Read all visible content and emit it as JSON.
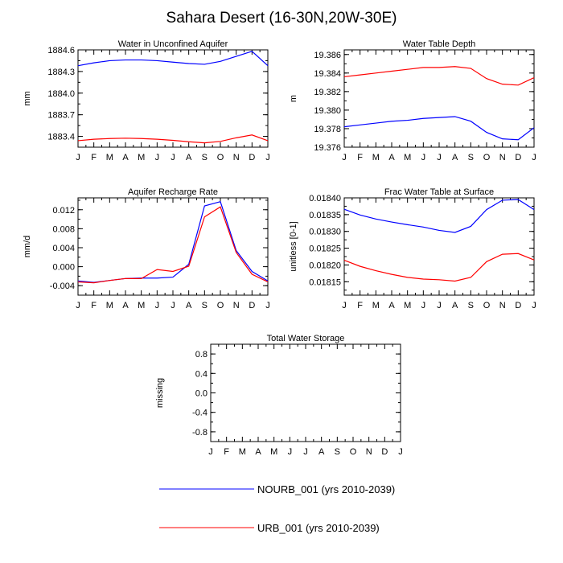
{
  "title": "Sahara Desert (16-30N,20W-30E)",
  "colors": {
    "nourb": "#0000ff",
    "urb": "#ff0000"
  },
  "legend": [
    {
      "key": "nourb",
      "label": "NOURB_001 (yrs 2010-2039)"
    },
    {
      "key": "urb",
      "label": "URB_001 (yrs 2010-2039)"
    }
  ],
  "chart_data": [
    {
      "type": "line",
      "title": "Water in Unconfined Aquifer",
      "xlabel": "",
      "ylabel": "mm",
      "categories": [
        "J",
        "F",
        "M",
        "A",
        "M",
        "J",
        "J",
        "A",
        "S",
        "O",
        "N",
        "D",
        "J"
      ],
      "ylim": [
        1883.25,
        1884.6
      ],
      "yticks": [
        1883.4,
        1883.7,
        1884.0,
        1884.3,
        1884.6
      ],
      "ytick_labels": [
        "1883.4",
        "1883.7",
        "1884.0",
        "1884.3",
        "1884.6"
      ],
      "series": [
        {
          "key": "nourb",
          "values": [
            1884.38,
            1884.42,
            1884.45,
            1884.46,
            1884.46,
            1884.45,
            1884.43,
            1884.41,
            1884.4,
            1884.44,
            1884.51,
            1884.58,
            1884.38
          ]
        },
        {
          "key": "urb",
          "values": [
            1883.34,
            1883.36,
            1883.37,
            1883.375,
            1883.37,
            1883.36,
            1883.345,
            1883.325,
            1883.31,
            1883.33,
            1883.38,
            1883.42,
            1883.34
          ]
        }
      ]
    },
    {
      "type": "line",
      "title": "Water Table Depth",
      "xlabel": "",
      "ylabel": "m",
      "categories": [
        "J",
        "F",
        "M",
        "A",
        "M",
        "J",
        "J",
        "A",
        "S",
        "O",
        "N",
        "D",
        "J"
      ],
      "ylim": [
        19.376,
        19.3865
      ],
      "yticks": [
        19.376,
        19.378,
        19.38,
        19.382,
        19.384,
        19.386
      ],
      "ytick_labels": [
        "19.376",
        "19.378",
        "19.380",
        "19.382",
        "19.384",
        "19.386"
      ],
      "series": [
        {
          "key": "nourb",
          "values": [
            19.3782,
            19.3784,
            19.3786,
            19.3788,
            19.3789,
            19.3791,
            19.3792,
            19.3793,
            19.3788,
            19.3776,
            19.3769,
            19.3768,
            19.3781
          ]
        },
        {
          "key": "urb",
          "values": [
            19.3836,
            19.3838,
            19.384,
            19.3842,
            19.3844,
            19.3846,
            19.3846,
            19.3847,
            19.3845,
            19.3834,
            19.3828,
            19.3827,
            19.3835
          ]
        }
      ]
    },
    {
      "type": "line",
      "title": "Aquifer Recharge Rate",
      "xlabel": "",
      "ylabel": "mm/d",
      "categories": [
        "J",
        "F",
        "M",
        "A",
        "M",
        "J",
        "J",
        "A",
        "S",
        "O",
        "N",
        "D",
        "J"
      ],
      "ylim": [
        -0.006,
        0.0145
      ],
      "yticks": [
        -0.004,
        0.0,
        0.004,
        0.008,
        0.012
      ],
      "ytick_labels": [
        "-0.004",
        "0.000",
        "0.004",
        "0.008",
        "0.012"
      ],
      "series": [
        {
          "key": "nourb",
          "values": [
            -0.003,
            -0.0033,
            -0.0029,
            -0.0025,
            -0.0024,
            -0.0024,
            -0.0022,
            0.0005,
            0.0128,
            0.0137,
            0.0034,
            -0.001,
            -0.003
          ]
        },
        {
          "key": "urb",
          "values": [
            -0.0032,
            -0.0034,
            -0.0029,
            -0.0025,
            -0.0025,
            -0.0006,
            -0.001,
            0.0001,
            0.0105,
            0.0126,
            0.003,
            -0.0016,
            -0.0032
          ]
        }
      ]
    },
    {
      "type": "line",
      "title": "Frac Water Table at Surface",
      "xlabel": "",
      "ylabel": "unitless [0-1]",
      "categories": [
        "J",
        "F",
        "M",
        "A",
        "M",
        "J",
        "J",
        "A",
        "S",
        "O",
        "N",
        "D",
        "J"
      ],
      "ylim": [
        0.01811,
        0.0184
      ],
      "yticks": [
        0.01815,
        0.0182,
        0.01825,
        0.0183,
        0.01835,
        0.0184
      ],
      "ytick_labels": [
        "0.01815",
        "0.01820",
        "0.01825",
        "0.01830",
        "0.01835",
        "0.01840"
      ],
      "series": [
        {
          "key": "nourb",
          "values": [
            0.018366,
            0.018349,
            0.018337,
            0.018328,
            0.01832,
            0.018313,
            0.018303,
            0.018297,
            0.018315,
            0.018365,
            0.018393,
            0.018395,
            0.018365
          ]
        },
        {
          "key": "urb",
          "values": [
            0.018214,
            0.018196,
            0.018183,
            0.018172,
            0.018163,
            0.018158,
            0.018156,
            0.018152,
            0.018163,
            0.01821,
            0.018232,
            0.018234,
            0.018215
          ]
        }
      ]
    },
    {
      "type": "line",
      "title": "Total Water Storage",
      "xlabel": "",
      "ylabel": "missing",
      "categories": [
        "J",
        "F",
        "M",
        "A",
        "M",
        "J",
        "J",
        "A",
        "S",
        "O",
        "N",
        "D",
        "J"
      ],
      "ylim": [
        -1.0,
        1.0
      ],
      "yticks": [
        -0.8,
        -0.4,
        0.0,
        0.4,
        0.8
      ],
      "ytick_labels": [
        "-0.8",
        "-0.4",
        "0.0",
        "0.4",
        "0.8"
      ],
      "series": []
    }
  ]
}
